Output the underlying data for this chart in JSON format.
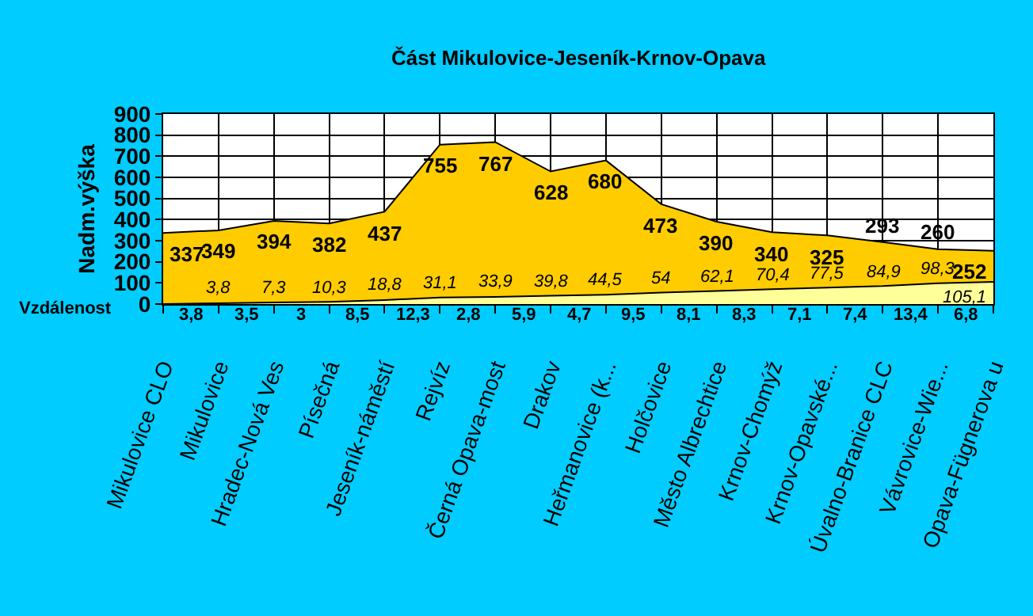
{
  "chart_data": {
    "type": "area",
    "title": "Část Mikulovice-Jeseník-Krnov-Opava",
    "ylabel": "Nadm.výška",
    "categories": [
      "Mikulovice CLO",
      "Mikulovice",
      "Hradec-Nová Ves",
      "Písečná",
      "Jeseník-náměstí",
      "Rejvíz",
      "Černá Opava-most",
      "Drakov",
      "Heřmanovice (k...",
      "Holčovice",
      "Město Albrechtice",
      "Krnov-Chomýž",
      "Krnov-Opavské...",
      "Úvalno-Branice CLC",
      "Vávrovice-Wie...",
      "Opava-Fügnerova u"
    ],
    "series": [
      {
        "color": "#ffcc00",
        "values": [
          337,
          349,
          394,
          382,
          437,
          755,
          767,
          628,
          680,
          473,
          390,
          340,
          325,
          293,
          260,
          252
        ],
        "value_labels": [
          "337",
          "349",
          "394",
          "382",
          "437",
          "755",
          "767",
          "628",
          "680",
          "473",
          "390",
          "340",
          "325",
          "293",
          "260",
          "252"
        ]
      },
      {
        "color": "#ffff99",
        "values": [
          0,
          3.8,
          7.3,
          10.3,
          18.8,
          31.1,
          33.9,
          39.8,
          44.5,
          54,
          62.1,
          70.4,
          77.5,
          84.9,
          98.3,
          105.1
        ],
        "value_labels": [
          null,
          "3,8",
          "7,3",
          "10,3",
          "18,8",
          "31,1",
          "33,9",
          "39,8",
          "44,5",
          "54",
          "62,1",
          "70,4",
          "77,5",
          "84,9",
          "98,3",
          "105,1"
        ]
      }
    ],
    "annotations": [
      "Vzdálenost",
      "3,8",
      "3,5",
      "3",
      "8,5",
      "12,3",
      "2,8",
      "5,9",
      "4,7",
      "9,5",
      "8,1",
      "8,3",
      "7,1",
      "7,4",
      "13,4",
      "6,8"
    ],
    "ylim": [
      0,
      900
    ],
    "yticks": [
      0,
      100,
      200,
      300,
      400,
      500,
      600,
      700,
      800,
      900
    ],
    "grid": true
  }
}
